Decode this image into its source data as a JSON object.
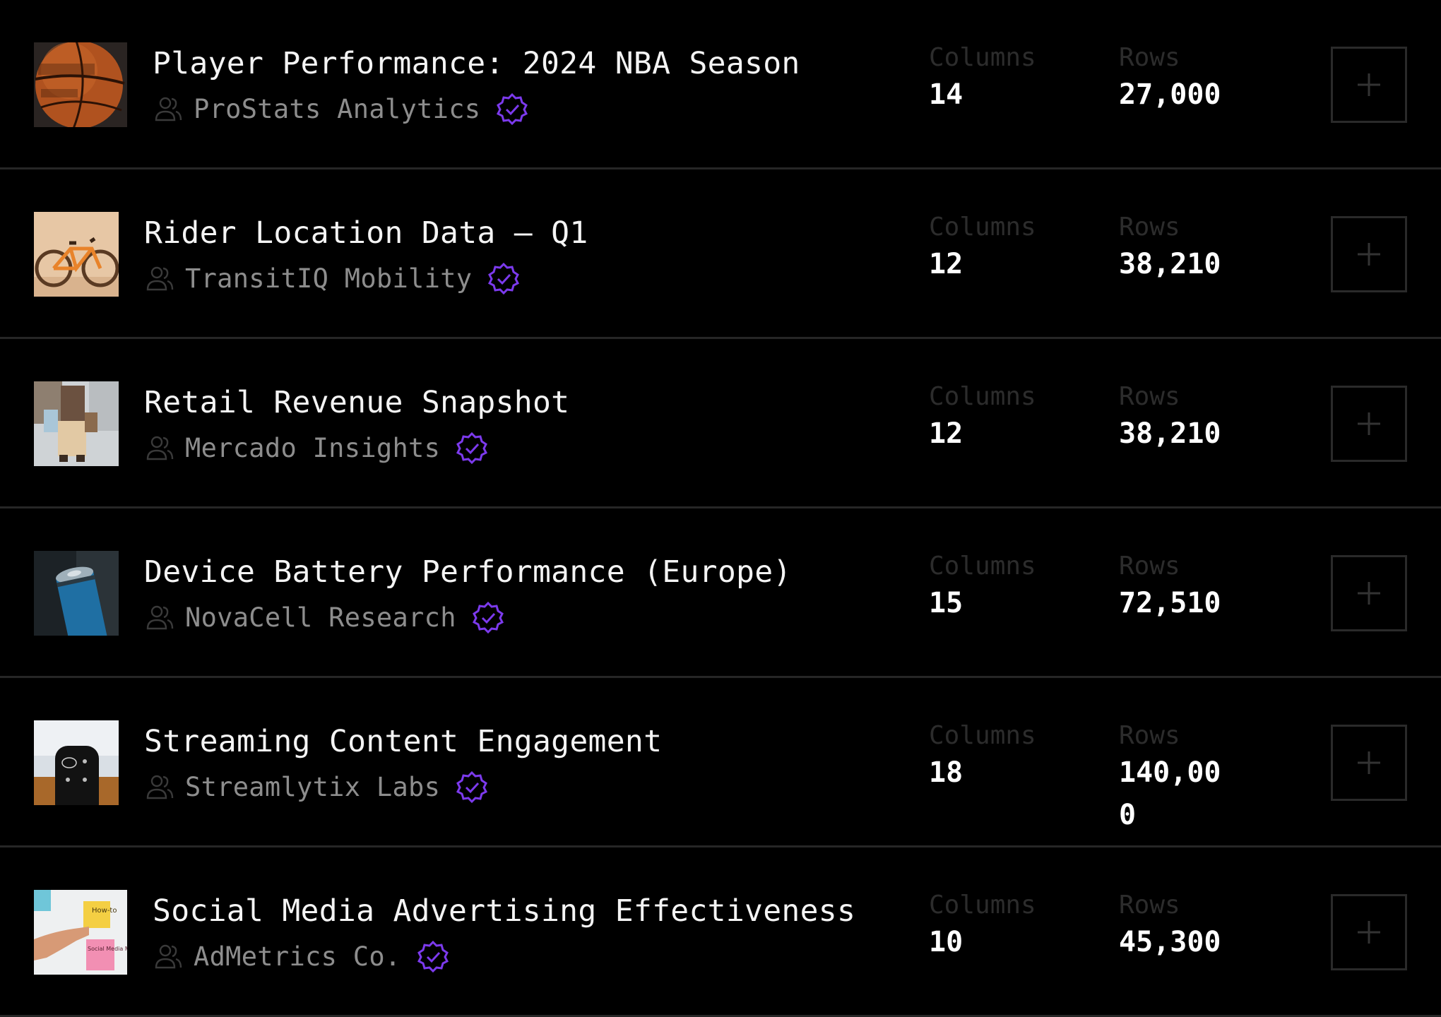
{
  "colors": {
    "background": "#000000",
    "verified": "#7c3aed",
    "muted_text": "#8d8d8d",
    "label_text": "#2c2c2c",
    "divider": "#262626"
  },
  "datasets": [
    {
      "title": "Player Performance: 2024 NBA Season",
      "publisher": "ProStats Analytics",
      "columns_label": "Columns",
      "columns": "14",
      "rows_label": "Rows",
      "rows": "27,000",
      "thumbnail": "basketball-image"
    },
    {
      "title": "Rider Location Data – Q1",
      "publisher": "TransitIQ Mobility",
      "columns_label": "Columns",
      "columns": "12",
      "rows_label": "Rows",
      "rows": "38,210",
      "thumbnail": "bicycle-image"
    },
    {
      "title": "Retail Revenue Snapshot",
      "publisher": "Mercado Insights",
      "columns_label": "Columns",
      "columns": "12",
      "rows_label": "Rows",
      "rows": "38,210",
      "thumbnail": "shopping-bags-image"
    },
    {
      "title": "Device Battery Performance (Europe)",
      "publisher": "NovaCell Research",
      "columns_label": "Columns",
      "columns": "15",
      "rows_label": "Rows",
      "rows": "72,510",
      "thumbnail": "battery-image"
    },
    {
      "title": "Streaming Content Engagement",
      "publisher": "Streamlytix Labs",
      "columns_label": "Columns",
      "columns": "18",
      "rows_label": "Rows",
      "rows": "140,000",
      "thumbnail": "remote-control-image"
    },
    {
      "title": "Social Media Advertising Effectiveness",
      "publisher": "AdMetrics Co.",
      "columns_label": "Columns",
      "columns": "10",
      "rows_label": "Rows",
      "rows": "45,300",
      "thumbnail": "sticky-notes-image",
      "thumbnail_text": {
        "note_top": "How-to",
        "note_bottom": "Social Media Marketing"
      }
    }
  ]
}
